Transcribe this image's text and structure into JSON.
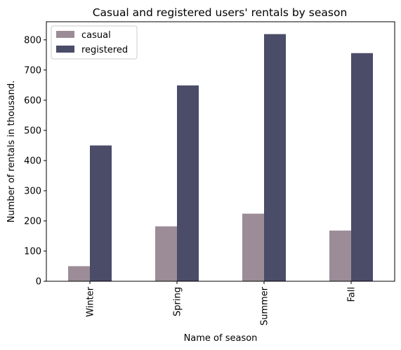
{
  "chart_data": {
    "type": "bar",
    "title": "Casual and registered users' rentals by season",
    "xlabel": "Name of season",
    "ylabel": "Number of rentals in thousand.",
    "categories": [
      "Winter",
      "Spring",
      "Summer",
      "Fall"
    ],
    "series": [
      {
        "name": "casual",
        "values": [
          50,
          182,
          224,
          168
        ],
        "color": "#9b8c98"
      },
      {
        "name": "registered",
        "values": [
          450,
          649,
          819,
          756
        ],
        "color": "#4a4c68"
      }
    ],
    "ylim": [
      0,
      860
    ],
    "yticks": [
      "0",
      "100",
      "200",
      "300",
      "400",
      "500",
      "600",
      "700",
      "800"
    ],
    "grid": false,
    "legend_position": "top-left"
  }
}
